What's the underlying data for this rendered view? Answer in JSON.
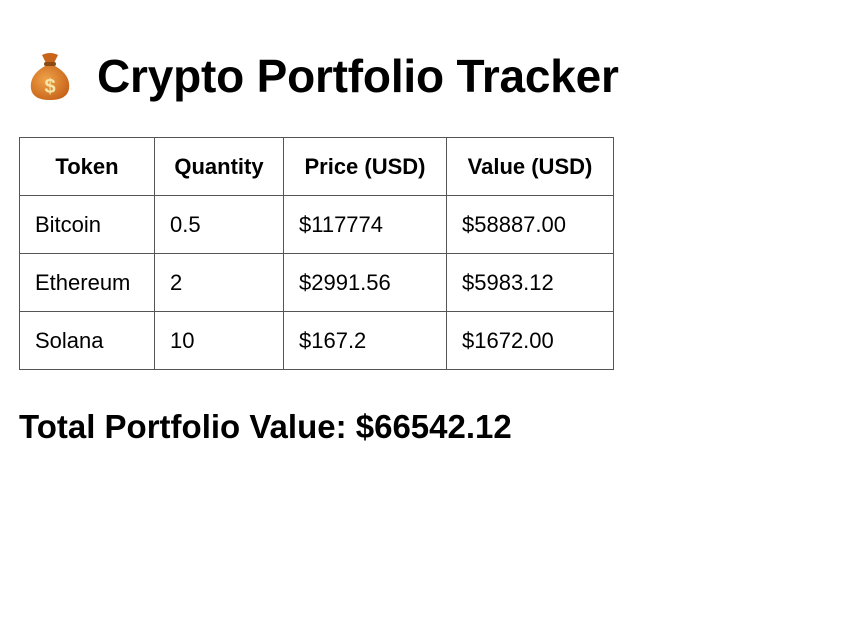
{
  "page": {
    "title": "Crypto Portfolio Tracker",
    "title_icon": "money-bag-icon"
  },
  "table": {
    "headers": [
      "Token",
      "Quantity",
      "Price (USD)",
      "Value (USD)"
    ],
    "rows": [
      {
        "token": "Bitcoin",
        "quantity": "0.5",
        "price": "$117774",
        "value": "$58887.00"
      },
      {
        "token": "Ethereum",
        "quantity": "2",
        "price": "$2991.56",
        "value": "$5983.12"
      },
      {
        "token": "Solana",
        "quantity": "10",
        "price": "$167.2",
        "value": "$1672.00"
      }
    ]
  },
  "summary": {
    "total_text": "Total Portfolio Value: $66542.12"
  },
  "colors": {
    "text": "#000000",
    "border": "#555555",
    "background": "#ffffff",
    "icon_bag": "#d9822b",
    "icon_dollar": "#f5e6a8"
  }
}
